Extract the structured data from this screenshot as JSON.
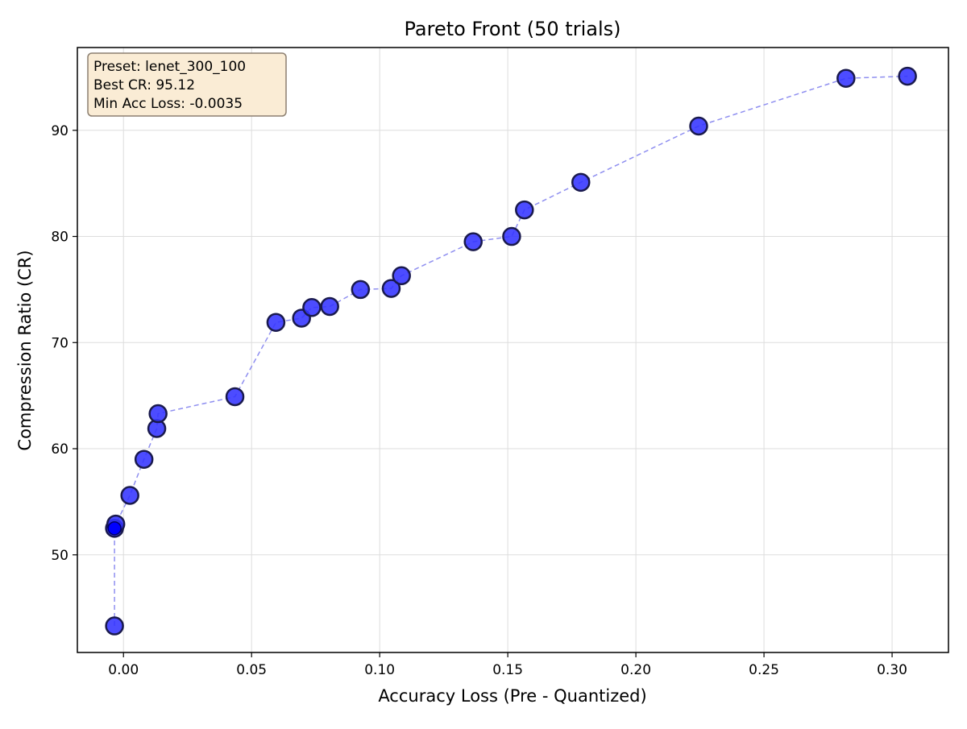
{
  "chart_data": {
    "type": "scatter",
    "title": "Pareto Front (50 trials)",
    "xlabel": "Accuracy Loss (Pre - Quantized)",
    "ylabel": "Compression Ratio (CR)",
    "xlim": [
      -0.018,
      0.322
    ],
    "ylim": [
      40.8,
      97.8
    ],
    "xticks": [
      0.0,
      0.05,
      0.1,
      0.15,
      0.2,
      0.25,
      0.3
    ],
    "xtick_labels": [
      "0.00",
      "0.05",
      "0.10",
      "0.15",
      "0.20",
      "0.25",
      "0.30"
    ],
    "yticks": [
      50,
      60,
      70,
      80,
      90
    ],
    "ytick_labels": [
      "50",
      "60",
      "70",
      "80",
      "90"
    ],
    "grid": true,
    "connecting_line": "dashed",
    "annotation": {
      "position": "top-left",
      "lines": [
        "Preset: lenet_300_100",
        "Best CR: 95.12",
        "Min Acc Loss: -0.0035"
      ]
    },
    "colors": {
      "marker_fill": "#3333ff",
      "marker_edge": "#1a1a4d",
      "line": "#8f8ff0",
      "highlight_fill": "#0000ff",
      "annotation_bg": "#faecd5",
      "annotation_border": "#8c7f70"
    },
    "series": [
      {
        "points": [
          {
            "x": -0.0035,
            "y": 43.3
          },
          {
            "x": -0.0035,
            "y": 52.5
          },
          {
            "x": -0.003,
            "y": 52.9
          },
          {
            "x": 0.0025,
            "y": 55.6
          },
          {
            "x": 0.008,
            "y": 59.0
          },
          {
            "x": 0.013,
            "y": 61.9
          },
          {
            "x": 0.0135,
            "y": 63.3
          },
          {
            "x": 0.0435,
            "y": 64.9
          },
          {
            "x": 0.0595,
            "y": 71.9
          },
          {
            "x": 0.0695,
            "y": 72.3
          },
          {
            "x": 0.0735,
            "y": 73.3
          },
          {
            "x": 0.0805,
            "y": 73.4
          },
          {
            "x": 0.0925,
            "y": 75.0
          },
          {
            "x": 0.1045,
            "y": 75.1
          },
          {
            "x": 0.1085,
            "y": 76.3
          },
          {
            "x": 0.1365,
            "y": 79.5
          },
          {
            "x": 0.1515,
            "y": 80.0
          },
          {
            "x": 0.1565,
            "y": 82.5
          },
          {
            "x": 0.1785,
            "y": 85.1
          },
          {
            "x": 0.2245,
            "y": 90.4
          },
          {
            "x": 0.282,
            "y": 94.9
          },
          {
            "x": 0.306,
            "y": 95.1
          }
        ],
        "highlight_point": {
          "x": -0.0035,
          "y": 52.5
        }
      }
    ]
  }
}
